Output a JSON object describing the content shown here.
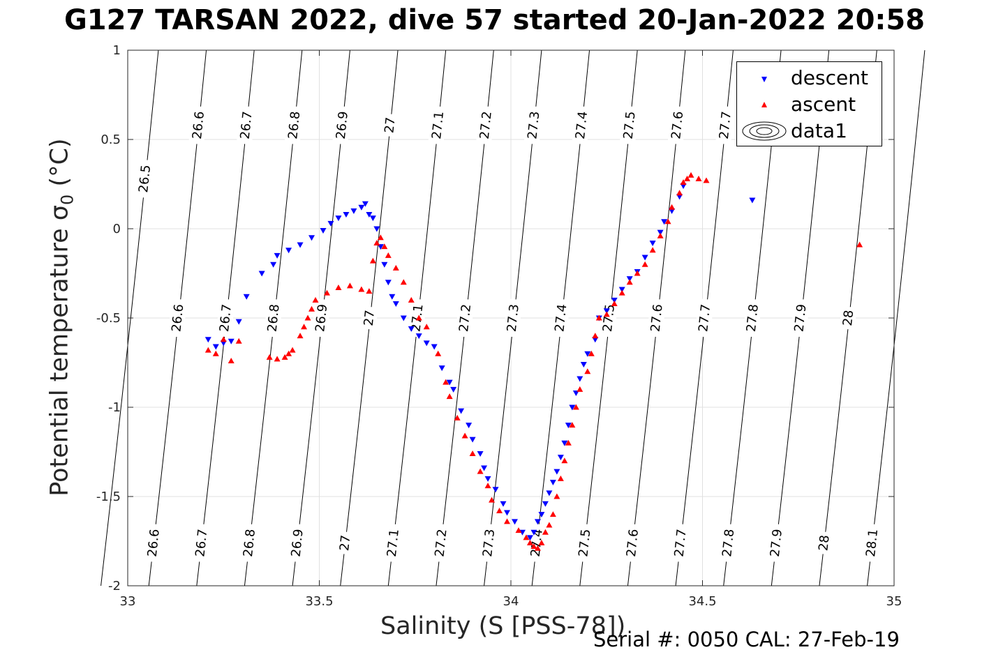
{
  "title": "G127 TARSAN 2022, dive 57 started 20-Jan-2022 20:58",
  "footer": "Serial #: 0050  CAL: 27-Feb-19",
  "chart_data": {
    "type": "scatter",
    "title": "G127 TARSAN 2022, dive 57 started 20-Jan-2022 20:58",
    "xlabel": "Salinity (S [PSS-78])",
    "ylabel": "Potential temperature σ",
    "ylabel_sub": "0",
    "ylabel_unit": " (°C)",
    "xlim": [
      33,
      35
    ],
    "ylim": [
      -2,
      1
    ],
    "xticks": [
      33,
      33.5,
      34,
      34.5,
      35
    ],
    "xtick_labels": [
      "33",
      "33.5",
      "34",
      "34.5",
      "35"
    ],
    "yticks": [
      -2,
      -1.5,
      -1,
      -0.5,
      0,
      0.5,
      1
    ],
    "ytick_labels": [
      "-2",
      "-1.5",
      "-1",
      "-0.5",
      "0",
      "0.5",
      "1"
    ],
    "grid": true,
    "legend_position": "top-right",
    "legend": [
      "descent",
      "ascent",
      "data1"
    ],
    "colors": {
      "descent": "#0000ff",
      "ascent": "#ff0000",
      "contour": "#000000",
      "grid": "#e0e0e0"
    },
    "contours": {
      "levels": [
        26.5,
        26.6,
        26.7,
        26.8,
        26.9,
        27,
        27.1,
        27.2,
        27.3,
        27.4,
        27.5,
        27.6,
        27.7,
        27.8,
        27.9,
        28,
        28.1
      ],
      "level_labels": [
        "26.5",
        "26.6",
        "26.7",
        "26.8",
        "26.9",
        "27",
        "27.1",
        "27.2",
        "27.3",
        "27.4",
        "27.5",
        "27.6",
        "27.7",
        "27.8",
        "27.9",
        "28",
        "28.1"
      ],
      "bottom_salinity": [
        32.93,
        33.055,
        33.18,
        33.305,
        33.43,
        33.555,
        33.68,
        33.805,
        33.93,
        34.055,
        34.18,
        34.305,
        34.43,
        34.555,
        34.68,
        34.805,
        34.93
      ],
      "top_salinity": [
        33.08,
        33.205,
        33.33,
        33.455,
        33.58,
        33.705,
        33.83,
        33.955,
        34.08,
        34.205,
        34.33,
        34.455,
        34.58,
        34.705,
        34.83,
        34.955,
        35.08
      ]
    },
    "series": [
      {
        "name": "descent",
        "marker": "triangle-down",
        "points": [
          [
            33.21,
            -0.62
          ],
          [
            33.23,
            -0.66
          ],
          [
            33.25,
            -0.64
          ],
          [
            33.27,
            -0.63
          ],
          [
            33.29,
            -0.52
          ],
          [
            33.31,
            -0.38
          ],
          [
            33.35,
            -0.25
          ],
          [
            33.38,
            -0.2
          ],
          [
            33.39,
            -0.15
          ],
          [
            33.42,
            -0.12
          ],
          [
            33.45,
            -0.09
          ],
          [
            33.48,
            -0.05
          ],
          [
            33.51,
            -0.01
          ],
          [
            33.53,
            0.03
          ],
          [
            33.55,
            0.06
          ],
          [
            33.57,
            0.08
          ],
          [
            33.59,
            0.1
          ],
          [
            33.61,
            0.12
          ],
          [
            33.62,
            0.14
          ],
          [
            33.63,
            0.08
          ],
          [
            33.64,
            0.06
          ],
          [
            33.65,
            0.0
          ],
          [
            33.66,
            -0.1
          ],
          [
            33.67,
            -0.2
          ],
          [
            33.68,
            -0.3
          ],
          [
            33.69,
            -0.38
          ],
          [
            33.7,
            -0.42
          ],
          [
            33.72,
            -0.5
          ],
          [
            33.74,
            -0.56
          ],
          [
            33.76,
            -0.6
          ],
          [
            33.78,
            -0.64
          ],
          [
            33.8,
            -0.66
          ],
          [
            33.82,
            -0.78
          ],
          [
            33.84,
            -0.86
          ],
          [
            33.85,
            -0.9
          ],
          [
            33.87,
            -1.02
          ],
          [
            33.89,
            -1.1
          ],
          [
            33.9,
            -1.18
          ],
          [
            33.92,
            -1.26
          ],
          [
            33.93,
            -1.34
          ],
          [
            33.94,
            -1.4
          ],
          [
            33.96,
            -1.46
          ],
          [
            33.98,
            -1.54
          ],
          [
            33.99,
            -1.59
          ],
          [
            34.01,
            -1.64
          ],
          [
            34.03,
            -1.7
          ],
          [
            34.05,
            -1.73
          ],
          [
            34.06,
            -1.7
          ],
          [
            34.07,
            -1.64
          ],
          [
            34.08,
            -1.6
          ],
          [
            34.09,
            -1.54
          ],
          [
            34.1,
            -1.48
          ],
          [
            34.11,
            -1.42
          ],
          [
            34.12,
            -1.36
          ],
          [
            34.13,
            -1.28
          ],
          [
            34.14,
            -1.2
          ],
          [
            34.15,
            -1.1
          ],
          [
            34.16,
            -1.0
          ],
          [
            34.17,
            -0.92
          ],
          [
            34.18,
            -0.84
          ],
          [
            34.19,
            -0.76
          ],
          [
            34.2,
            -0.7
          ],
          [
            34.22,
            -0.62
          ],
          [
            34.23,
            -0.5
          ],
          [
            34.25,
            -0.46
          ],
          [
            34.27,
            -0.4
          ],
          [
            34.29,
            -0.34
          ],
          [
            34.31,
            -0.28
          ],
          [
            34.33,
            -0.24
          ],
          [
            34.35,
            -0.16
          ],
          [
            34.37,
            -0.08
          ],
          [
            34.39,
            -0.02
          ],
          [
            34.4,
            0.04
          ],
          [
            34.42,
            0.1
          ],
          [
            34.44,
            0.18
          ],
          [
            34.45,
            0.24
          ],
          [
            34.63,
            0.16
          ]
        ]
      },
      {
        "name": "ascent",
        "marker": "triangle-up",
        "points": [
          [
            33.21,
            -0.68
          ],
          [
            33.23,
            -0.7
          ],
          [
            33.25,
            -0.62
          ],
          [
            33.27,
            -0.74
          ],
          [
            33.29,
            -0.63
          ],
          [
            33.37,
            -0.72
          ],
          [
            33.39,
            -0.73
          ],
          [
            33.41,
            -0.72
          ],
          [
            33.42,
            -0.7
          ],
          [
            33.43,
            -0.68
          ],
          [
            33.45,
            -0.6
          ],
          [
            33.46,
            -0.55
          ],
          [
            33.47,
            -0.5
          ],
          [
            33.48,
            -0.45
          ],
          [
            33.49,
            -0.4
          ],
          [
            33.52,
            -0.36
          ],
          [
            33.55,
            -0.33
          ],
          [
            33.58,
            -0.32
          ],
          [
            33.61,
            -0.34
          ],
          [
            33.63,
            -0.35
          ],
          [
            33.64,
            -0.18
          ],
          [
            33.65,
            -0.08
          ],
          [
            33.66,
            -0.05
          ],
          [
            33.67,
            -0.1
          ],
          [
            33.68,
            -0.15
          ],
          [
            33.7,
            -0.22
          ],
          [
            33.72,
            -0.3
          ],
          [
            33.74,
            -0.4
          ],
          [
            33.76,
            -0.5
          ],
          [
            33.78,
            -0.55
          ],
          [
            33.81,
            -0.7
          ],
          [
            33.83,
            -0.86
          ],
          [
            33.84,
            -0.94
          ],
          [
            33.86,
            -1.06
          ],
          [
            33.88,
            -1.16
          ],
          [
            33.9,
            -1.26
          ],
          [
            33.92,
            -1.36
          ],
          [
            33.94,
            -1.44
          ],
          [
            33.95,
            -1.52
          ],
          [
            33.97,
            -1.58
          ],
          [
            33.99,
            -1.64
          ],
          [
            34.02,
            -1.69
          ],
          [
            34.04,
            -1.73
          ],
          [
            34.05,
            -1.76
          ],
          [
            34.06,
            -1.78
          ],
          [
            34.07,
            -1.79
          ],
          [
            34.08,
            -1.76
          ],
          [
            34.09,
            -1.7
          ],
          [
            34.1,
            -1.66
          ],
          [
            34.11,
            -1.6
          ],
          [
            34.12,
            -1.5
          ],
          [
            34.13,
            -1.4
          ],
          [
            34.14,
            -1.3
          ],
          [
            34.15,
            -1.2
          ],
          [
            34.16,
            -1.1
          ],
          [
            34.17,
            -1.0
          ],
          [
            34.18,
            -0.9
          ],
          [
            34.2,
            -0.8
          ],
          [
            34.21,
            -0.7
          ],
          [
            34.22,
            -0.6
          ],
          [
            34.23,
            -0.5
          ],
          [
            34.25,
            -0.48
          ],
          [
            34.27,
            -0.42
          ],
          [
            34.29,
            -0.36
          ],
          [
            34.31,
            -0.3
          ],
          [
            34.33,
            -0.25
          ],
          [
            34.35,
            -0.2
          ],
          [
            34.37,
            -0.12
          ],
          [
            34.39,
            -0.04
          ],
          [
            34.41,
            0.04
          ],
          [
            34.42,
            0.12
          ],
          [
            34.44,
            0.2
          ],
          [
            34.45,
            0.26
          ],
          [
            34.46,
            0.28
          ],
          [
            34.47,
            0.3
          ],
          [
            34.49,
            0.28
          ],
          [
            34.51,
            0.27
          ],
          [
            34.91,
            -0.09
          ]
        ]
      }
    ]
  }
}
